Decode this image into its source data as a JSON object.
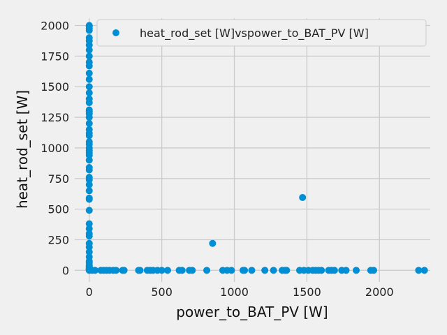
{
  "colors": {
    "background": "#f0f0f0",
    "grid": "#cbcbcb",
    "marker": "#008fd5",
    "legend_border": "#cccccc"
  },
  "chart_data": {
    "type": "scatter",
    "title": "",
    "xlabel": "power_to_BAT_PV [W]",
    "ylabel": "heat_rod_set [W]",
    "xlim": [
      -100,
      2350
    ],
    "ylim": [
      -95,
      2060
    ],
    "xticks": [
      0,
      500,
      1000,
      1500,
      2000
    ],
    "yticks": [
      0,
      250,
      500,
      750,
      1000,
      1250,
      1500,
      1750,
      2000
    ],
    "grid": true,
    "legend_position": "top-right",
    "series": [
      {
        "name": "heat_rod_set [W]vspower_to_BAT_PV [W]",
        "color": "#008fd5",
        "x": [
          0,
          0,
          0,
          0,
          0,
          0,
          0,
          0,
          0,
          0,
          0,
          0,
          0,
          0,
          0,
          0,
          0,
          0,
          0,
          0,
          0,
          0,
          0,
          0,
          0,
          0,
          0,
          0,
          0,
          0,
          0,
          0,
          0,
          0,
          0,
          0,
          0,
          0,
          0,
          0,
          0,
          0,
          0,
          0,
          0,
          0,
          0,
          0,
          0,
          0,
          0,
          0,
          0,
          0,
          0,
          0,
          0,
          0,
          0,
          0,
          20,
          40,
          80,
          100,
          120,
          140,
          165,
          185,
          230,
          240,
          340,
          350,
          400,
          420,
          440,
          470,
          500,
          540,
          620,
          640,
          690,
          710,
          810,
          920,
          950,
          980,
          1060,
          1070,
          1120,
          1210,
          1270,
          1330,
          1350,
          1360,
          1450,
          1480,
          1510,
          1540,
          1560,
          1580,
          1600,
          1650,
          1670,
          1690,
          1740,
          1770,
          1840,
          1940,
          1960,
          2270,
          2310,
          850,
          1470
        ],
        "y": [
          2000,
          1990,
          1975,
          1960,
          1900,
          1875,
          1840,
          1800,
          1750,
          1700,
          1670,
          1610,
          1560,
          1500,
          1450,
          1400,
          1370,
          1310,
          1300,
          1280,
          1250,
          1200,
          1150,
          1120,
          1100,
          1050,
          1030,
          1000,
          980,
          960,
          940,
          900,
          840,
          820,
          760,
          740,
          700,
          650,
          590,
          580,
          490,
          380,
          340,
          300,
          280,
          220,
          190,
          150,
          110,
          75,
          60,
          40,
          30,
          20,
          15,
          10,
          8,
          5,
          2,
          0,
          0,
          0,
          0,
          0,
          0,
          0,
          0,
          0,
          0,
          0,
          0,
          0,
          0,
          0,
          0,
          0,
          0,
          0,
          0,
          0,
          0,
          0,
          0,
          0,
          0,
          0,
          0,
          0,
          0,
          0,
          0,
          0,
          0,
          0,
          0,
          0,
          0,
          0,
          0,
          0,
          0,
          0,
          0,
          0,
          0,
          0,
          0,
          0,
          0,
          0,
          0,
          220,
          595
        ]
      }
    ]
  }
}
